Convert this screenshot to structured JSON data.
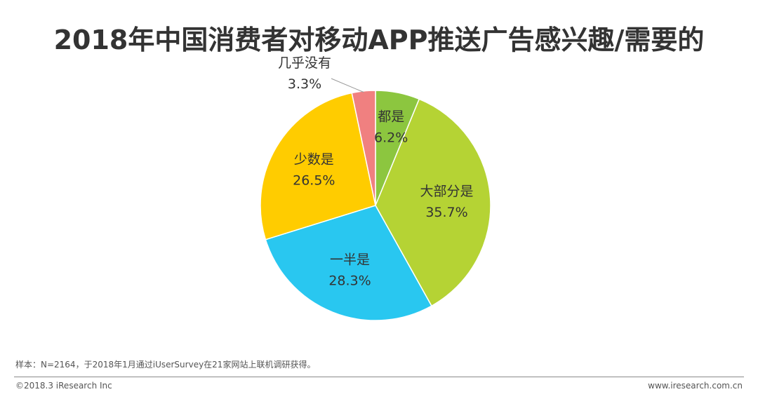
{
  "page": {
    "title": "2018年中国消费者对移动APP推送广告感兴趣/需要的",
    "note": "样本：N=2164，于2018年1月通过iUserSurvey在21家网站上联机调研获得。",
    "copyright": "©2018.3 iResearch Inc",
    "website": "www.iresearch.com.cn"
  },
  "chart_data": {
    "type": "pie",
    "title": "2018年中国消费者对移动APP推送广告感兴趣/需要的",
    "start": "12 o'clock, clockwise",
    "slices": [
      {
        "label": "都是",
        "value": 6.2,
        "display": "6.2%",
        "color": "#8cc63f"
      },
      {
        "label": "大部分是",
        "value": 35.7,
        "display": "35.7%",
        "color": "#b5d334"
      },
      {
        "label": "一半是",
        "value": 28.3,
        "display": "28.3%",
        "color": "#29c7f0"
      },
      {
        "label": "少数是",
        "value": 26.5,
        "display": "26.5%",
        "color": "#ffcc00"
      },
      {
        "label": "几乎没有",
        "value": 3.3,
        "display": "3.3%",
        "color": "#f08080"
      }
    ]
  }
}
